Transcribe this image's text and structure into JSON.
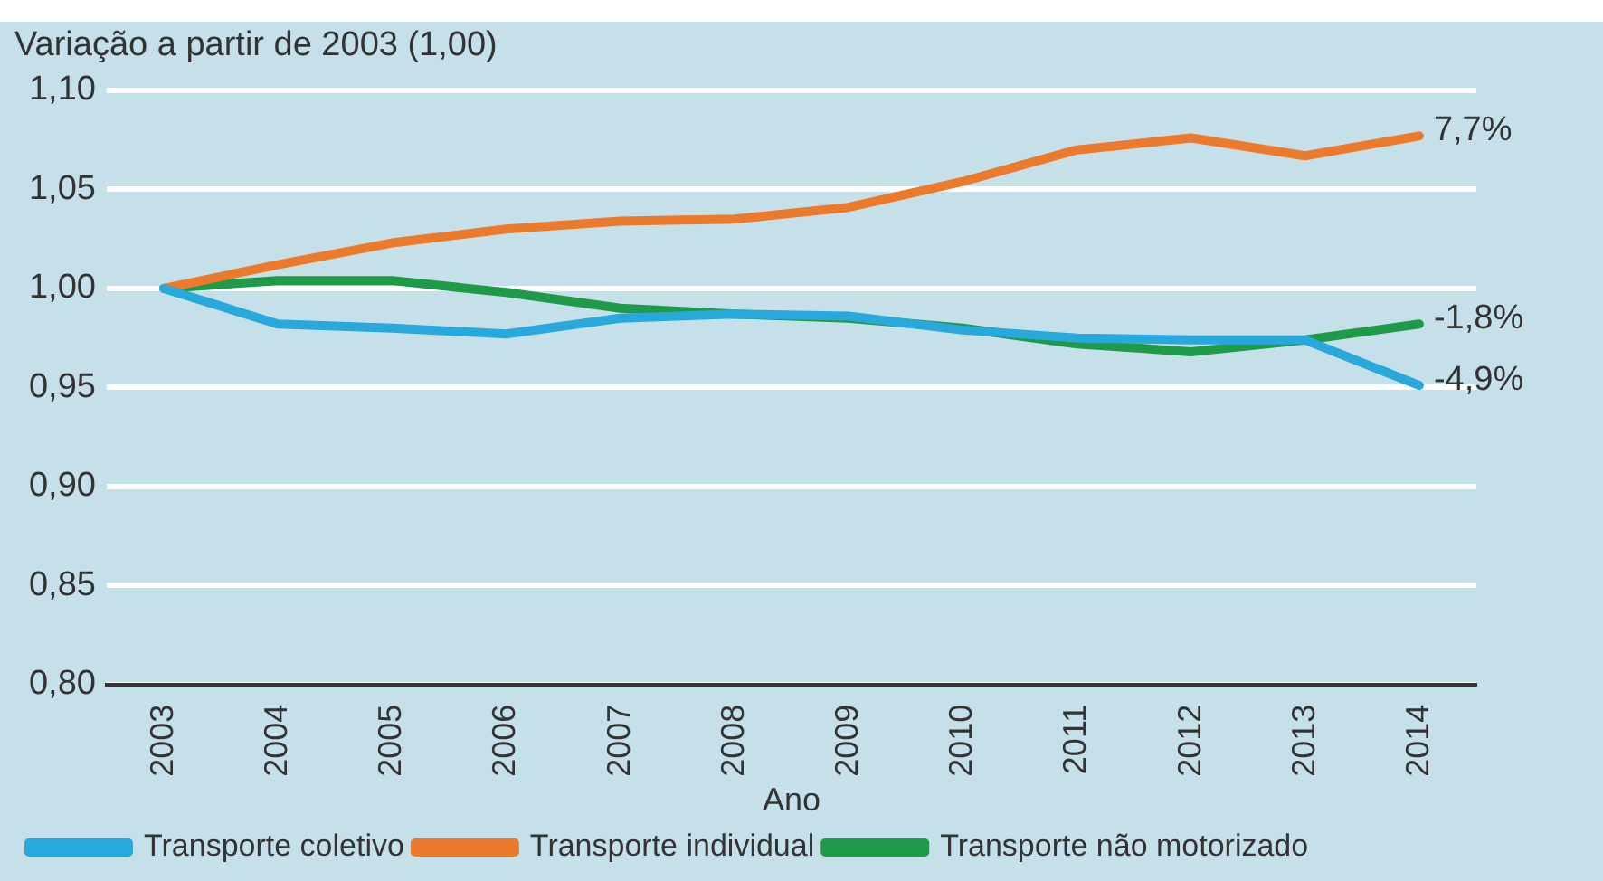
{
  "chart_data": {
    "type": "line",
    "ylabel": "Variação a partir de 2003 (1,00)",
    "xlabel": "Ano",
    "categories": [
      "2003",
      "2004",
      "2005",
      "2006",
      "2007",
      "2008",
      "2009",
      "2010",
      "2011",
      "2012",
      "2013",
      "2014"
    ],
    "series": [
      {
        "name": "Transporte coletivo",
        "color": "#29a8dc",
        "values": [
          1.0,
          0.982,
          0.98,
          0.977,
          0.985,
          0.987,
          0.986,
          0.979,
          0.975,
          0.974,
          0.974,
          0.951
        ]
      },
      {
        "name": "Transporte individual",
        "color": "#ec7a2c",
        "values": [
          1.0,
          1.012,
          1.023,
          1.03,
          1.034,
          1.035,
          1.041,
          1.054,
          1.07,
          1.076,
          1.067,
          1.077
        ]
      },
      {
        "name": "Transporte não motorizado",
        "color": "#1f9a48",
        "values": [
          1.0,
          1.004,
          1.004,
          0.998,
          0.99,
          0.987,
          0.985,
          0.98,
          0.972,
          0.968,
          0.974,
          0.982
        ]
      }
    ],
    "ylim": [
      0.8,
      1.1
    ],
    "yticks": [
      {
        "value": 0.8,
        "label": "0,80"
      },
      {
        "value": 0.85,
        "label": "0,85"
      },
      {
        "value": 0.9,
        "label": "0,90"
      },
      {
        "value": 0.95,
        "label": "0,95"
      },
      {
        "value": 1.0,
        "label": "1,00"
      },
      {
        "value": 1.05,
        "label": "1,05"
      },
      {
        "value": 1.1,
        "label": "1,10"
      }
    ],
    "annotations": [
      {
        "text": "7,7%",
        "x": "2014",
        "y": 1.077
      },
      {
        "text": "-1,8%",
        "x": "2014",
        "y": 0.982
      },
      {
        "text": "-4,9%",
        "x": "2014",
        "y": 0.951
      }
    ],
    "grid": "y",
    "legend": "bottom",
    "marker": "none",
    "line_style": "solid"
  }
}
